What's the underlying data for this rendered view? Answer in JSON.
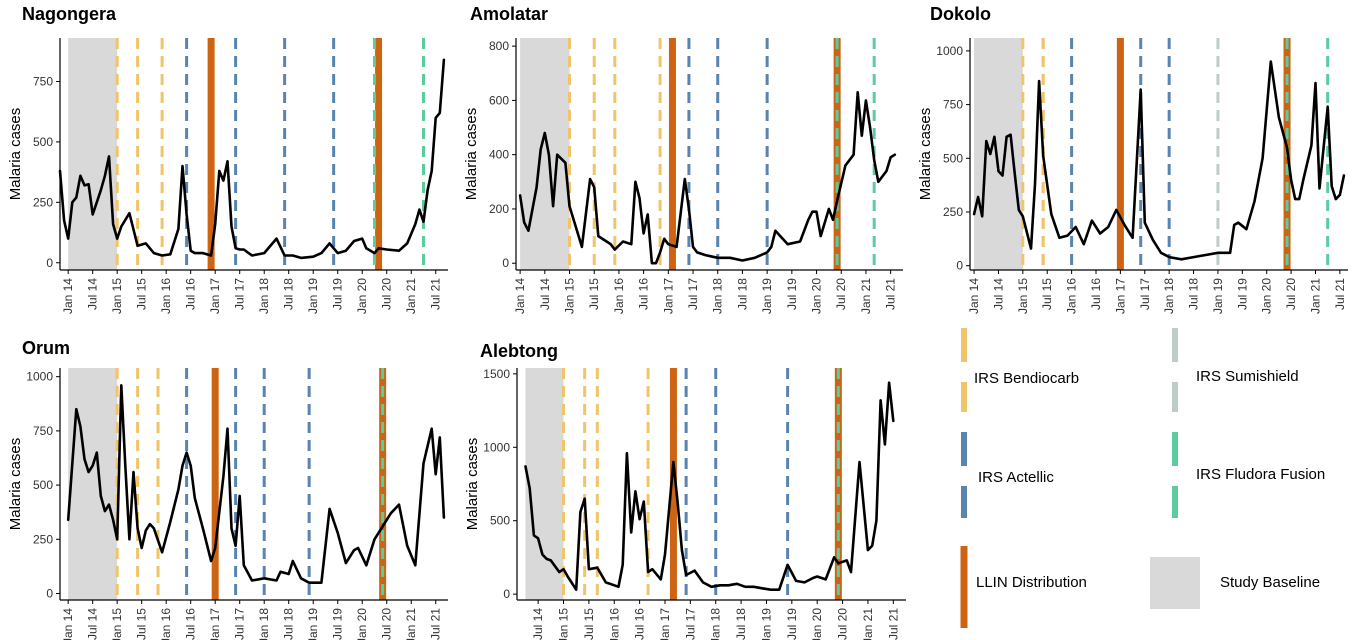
{
  "colors": {
    "baseline": "#d9d9d9",
    "irs_bendiocarb": "#f0c46a",
    "irs_actellic": "#5a84b0",
    "irs_sumishield": "#bfcdc8",
    "irs_fludora_fusion": "#5ccc9e",
    "llin_distribution": "#cc6414",
    "cases_line": "#000000"
  },
  "legend": {
    "irs_bendiocarb": "IRS Bendiocarb",
    "irs_sumishield": "IRS Sumishield",
    "irs_actellic": "IRS Actellic",
    "irs_fludora_fusion": "IRS Fludora Fusion",
    "llin_distribution": "LLIN Distribution",
    "study_baseline": "Study Baseline"
  },
  "chart_data": [
    {
      "type": "line",
      "title": "Nagongera",
      "ylabel": "Malaria cases",
      "xlabel": "",
      "ylim": [
        -30,
        930
      ],
      "yticks": [
        0,
        250,
        500,
        750
      ],
      "xticks": [
        "Jan 14",
        "Jul 14",
        "Jan 15",
        "Jul 15",
        "Jan 16",
        "Jul 16",
        "Jan 17",
        "Jul 17",
        "Jan 18",
        "Jul 18",
        "Jan 19",
        "Jul 19",
        "Jan 20",
        "Jul 20",
        "Jan 21",
        "Jul 21"
      ],
      "baseline": [
        "Jan 14",
        "Jan 15"
      ],
      "interventions": {
        "irs_bendiocarb": [
          "Jan 15",
          "Jun 15",
          "Dec 15"
        ],
        "irs_actellic": [
          "Jun 16",
          "Jun 17",
          "Jun 18",
          "Jun 19"
        ],
        "irs_fludora_fusion": [
          "Apr 20",
          "Apr 21"
        ],
        "llin_distribution": [
          "Dec 16",
          "May 20"
        ]
      },
      "series": [
        {
          "x": [
            "Nov 13",
            "Dec 13",
            "Jan 14",
            "Feb 14",
            "Mar 14",
            "Apr 14",
            "May 14",
            "Jun 14",
            "Jul 14",
            "Aug 14",
            "Sep 14",
            "Oct 14",
            "Nov 14",
            "Dec 14",
            "Jan 15",
            "Feb 15",
            "Apr 15",
            "Jun 15",
            "Aug 15",
            "Oct 15",
            "Dec 15",
            "Feb 16",
            "Apr 16",
            "May 16",
            "Jun 16",
            "Jul 16",
            "Aug 16",
            "Oct 16",
            "Dec 16",
            "Jan 17",
            "Feb 17",
            "Mar 17",
            "Apr 17",
            "May 17",
            "Jun 17",
            "Jul 17",
            "Aug 17",
            "Oct 17",
            "Jan 18",
            "Apr 18",
            "Jun 18",
            "Aug 18",
            "Oct 18",
            "Jan 19",
            "Mar 19",
            "May 19",
            "Jul 19",
            "Sep 19",
            "Nov 19",
            "Jan 20",
            "Feb 20",
            "Apr 20",
            "May 20",
            "Jul 20",
            "Oct 20",
            "Dec 20",
            "Feb 21",
            "Mar 21",
            "Apr 21",
            "May 21",
            "Jun 21",
            "Jul 21",
            "Aug 21",
            "Sep 21"
          ],
          "values": [
            380,
            175,
            100,
            250,
            270,
            360,
            320,
            325,
            200,
            250,
            300,
            360,
            440,
            160,
            100,
            150,
            205,
            70,
            80,
            40,
            30,
            35,
            140,
            400,
            200,
            50,
            40,
            40,
            30,
            160,
            380,
            340,
            420,
            150,
            60,
            55,
            55,
            30,
            40,
            100,
            30,
            30,
            20,
            25,
            40,
            80,
            40,
            50,
            90,
            100,
            60,
            40,
            60,
            55,
            50,
            80,
            160,
            220,
            170,
            300,
            380,
            600,
            620,
            840
          ]
        }
      ]
    },
    {
      "type": "line",
      "title": "Amolatar",
      "ylabel": "Malaria cases",
      "xlabel": "",
      "ylim": [
        -25,
        830
      ],
      "yticks": [
        0,
        200,
        400,
        600,
        800
      ],
      "xticks": [
        "Jan 14",
        "Jul 14",
        "Jan 15",
        "Jul 15",
        "Jan 16",
        "Jul 16",
        "Jan 17",
        "Jul 17",
        "Jan 18",
        "Jul 18",
        "Jan 19",
        "Jul 19",
        "Jan 20",
        "Jul 20",
        "Jan 21",
        "Jul 21"
      ],
      "baseline": [
        "Jan 14",
        "Jan 15"
      ],
      "interventions": {
        "irs_bendiocarb": [
          "Jan 15",
          "Jul 15",
          "Dec 15",
          "Nov 16"
        ],
        "irs_actellic": [
          "Jun 17",
          "Jan 18",
          "Jan 19"
        ],
        "irs_fludora_fusion": [
          "Jun 20",
          "Mar 21"
        ],
        "llin_distribution": [
          "Feb 17",
          "Jun 20"
        ]
      },
      "series": [
        {
          "x": [
            "Jan 14",
            "Feb 14",
            "Mar 14",
            "May 14",
            "Jun 14",
            "Jul 14",
            "Aug 14",
            "Sep 14",
            "Oct 14",
            "Dec 14",
            "Jan 15",
            "Mar 15",
            "Apr 15",
            "Jun 15",
            "Jul 15",
            "Aug 15",
            "Oct 15",
            "Nov 15",
            "Dec 15",
            "Feb 16",
            "Apr 16",
            "May 16",
            "Jun 16",
            "Jul 16",
            "Aug 16",
            "Sep 16",
            "Oct 16",
            "Nov 16",
            "Dec 16",
            "Jan 17",
            "Mar 17",
            "May 17",
            "Jun 17",
            "Jul 17",
            "Aug 17",
            "Oct 17",
            "Jan 18",
            "Apr 18",
            "Jul 18",
            "Oct 18",
            "Jan 19",
            "Feb 19",
            "Mar 19",
            "Jun 19",
            "Sep 19",
            "Nov 19",
            "Dec 19",
            "Jan 20",
            "Feb 20",
            "Apr 20",
            "May 20",
            "Jun 20",
            "Aug 20",
            "Oct 20",
            "Nov 20",
            "Dec 20",
            "Jan 21",
            "Feb 21",
            "Mar 21",
            "Apr 21",
            "Jun 21",
            "Jul 21",
            "Aug 21"
          ],
          "values": [
            250,
            150,
            120,
            280,
            420,
            480,
            400,
            210,
            400,
            370,
            210,
            110,
            60,
            310,
            280,
            100,
            80,
            70,
            50,
            80,
            70,
            300,
            240,
            110,
            180,
            0,
            0,
            40,
            90,
            70,
            60,
            310,
            200,
            60,
            40,
            30,
            20,
            20,
            10,
            20,
            40,
            60,
            120,
            70,
            80,
            160,
            190,
            190,
            100,
            200,
            160,
            230,
            360,
            400,
            630,
            470,
            600,
            500,
            380,
            300,
            340,
            390,
            400
          ]
        }
      ]
    },
    {
      "type": "line",
      "title": "Dokolo",
      "ylabel": "Malaria cases",
      "xlabel": "",
      "ylim": [
        -20,
        1060
      ],
      "yticks": [
        0,
        250,
        500,
        750,
        1000
      ],
      "xticks": [
        "Jan 14",
        "Jul 14",
        "Jan 15",
        "Jul 15",
        "Jan 16",
        "Jul 16",
        "Jan 17",
        "Jul 17",
        "Jan 18",
        "Jul 18",
        "Jan 19",
        "Jul 19",
        "Jan 20",
        "Jul 20",
        "Jan 21",
        "Jul 21"
      ],
      "baseline": [
        "Jan 14",
        "Jan 15"
      ],
      "interventions": {
        "irs_bendiocarb": [
          "Jan 15",
          "Jun 15",
          "Jun 15"
        ],
        "irs_actellic": [
          "Jan 16",
          "Jun 17",
          "Jan 18"
        ],
        "irs_sumishield": [
          "Jan 19"
        ],
        "irs_fludora_fusion": [
          "Jun 20",
          "Apr 21"
        ],
        "llin_distribution": [
          "Jan 17",
          "Jun 20"
        ]
      },
      "series": [
        {
          "x": [
            "Jan 14",
            "Feb 14",
            "Mar 14",
            "Apr 14",
            "May 14",
            "Jun 14",
            "Jul 14",
            "Aug 14",
            "Sep 14",
            "Oct 14",
            "Nov 14",
            "Dec 14",
            "Jan 15",
            "Mar 15",
            "Apr 15",
            "May 15",
            "Jun 15",
            "Aug 15",
            "Oct 15",
            "Dec 15",
            "Feb 16",
            "Apr 16",
            "Jun 16",
            "Aug 16",
            "Oct 16",
            "Dec 16",
            "Feb 17",
            "Apr 17",
            "Jun 17",
            "Jul 17",
            "Sep 17",
            "Nov 17",
            "Jan 18",
            "Apr 18",
            "Jul 18",
            "Oct 18",
            "Jan 19",
            "Apr 19",
            "May 19",
            "Jun 19",
            "Aug 19",
            "Oct 19",
            "Dec 19",
            "Feb 20",
            "Apr 20",
            "Jun 20",
            "Jul 20",
            "Aug 20",
            "Sep 20",
            "Oct 20",
            "Dec 20",
            "Jan 21",
            "Feb 21",
            "Apr 21",
            "May 21",
            "Jun 21",
            "Jul 21",
            "Aug 21"
          ],
          "values": [
            240,
            320,
            230,
            580,
            520,
            600,
            440,
            420,
            600,
            610,
            430,
            260,
            230,
            80,
            380,
            860,
            510,
            240,
            130,
            140,
            180,
            100,
            210,
            150,
            180,
            260,
            190,
            130,
            820,
            200,
            120,
            60,
            40,
            30,
            40,
            50,
            60,
            60,
            190,
            200,
            170,
            300,
            500,
            950,
            690,
            550,
            400,
            310,
            310,
            400,
            560,
            850,
            360,
            740,
            370,
            310,
            330,
            420
          ]
        }
      ]
    },
    {
      "type": "line",
      "title": "Orum",
      "ylabel": "Malaria cases",
      "xlabel": "",
      "ylim": [
        -30,
        1040
      ],
      "yticks": [
        0,
        250,
        500,
        750,
        1000
      ],
      "xticks": [
        "Jan 14",
        "Jul 14",
        "Jan 15",
        "Jul 15",
        "Jan 16",
        "Jul 16",
        "Jan 17",
        "Jul 17",
        "Jan 18",
        "Jul 18",
        "Jan 19",
        "Jul 19",
        "Jan 20",
        "Jul 20",
        "Jan 21",
        "Jul 21"
      ],
      "baseline": [
        "Jan 14",
        "Jan 15"
      ],
      "interventions": {
        "irs_bendiocarb": [
          "Jan 15",
          "Jun 15",
          "Nov 15"
        ],
        "irs_actellic": [
          "Jun 16",
          "Jun 17",
          "Jan 18",
          "Dec 18"
        ],
        "irs_fludora_fusion": [
          "Jun 20"
        ],
        "llin_distribution": [
          "Jan 17",
          "Jun 20"
        ]
      },
      "series": [
        {
          "x": [
            "Jan 14",
            "Mar 14",
            "Apr 14",
            "May 14",
            "Jun 14",
            "Jul 14",
            "Aug 14",
            "Sep 14",
            "Oct 14",
            "Nov 14",
            "Dec 14",
            "Jan 15",
            "Feb 15",
            "Mar 15",
            "Apr 15",
            "May 15",
            "Jun 15",
            "Jul 15",
            "Aug 15",
            "Sep 15",
            "Oct 15",
            "Dec 15",
            "Feb 16",
            "Apr 16",
            "May 16",
            "Jun 16",
            "Jul 16",
            "Aug 16",
            "Oct 16",
            "Dec 16",
            "Jan 17",
            "Mar 17",
            "Apr 17",
            "May 17",
            "Jun 17",
            "Jul 17",
            "Aug 17",
            "Oct 17",
            "Jan 18",
            "Apr 18",
            "May 18",
            "Jul 18",
            "Aug 18",
            "Oct 18",
            "Dec 18",
            "Feb 19",
            "Mar 19",
            "May 19",
            "Jul 19",
            "Sep 19",
            "Nov 19",
            "Dec 19",
            "Feb 20",
            "Apr 20",
            "Jun 20",
            "Aug 20",
            "Oct 20",
            "Dec 20",
            "Feb 21",
            "Apr 21",
            "Jun 21",
            "Jul 21",
            "Aug 21",
            "Sep 21"
          ],
          "values": [
            340,
            850,
            770,
            620,
            560,
            590,
            650,
            450,
            380,
            410,
            340,
            250,
            960,
            590,
            250,
            560,
            300,
            210,
            290,
            320,
            300,
            190,
            330,
            480,
            590,
            650,
            590,
            440,
            300,
            150,
            210,
            540,
            760,
            300,
            220,
            450,
            130,
            60,
            70,
            60,
            100,
            90,
            150,
            70,
            50,
            50,
            50,
            390,
            280,
            140,
            200,
            210,
            130,
            250,
            310,
            370,
            410,
            220,
            130,
            600,
            760,
            550,
            720,
            350
          ]
        }
      ]
    },
    {
      "type": "line",
      "title": "Alebtong",
      "ylabel": "Malaria cases",
      "xlabel": "",
      "ylim": [
        -40,
        1540
      ],
      "yticks": [
        0,
        500,
        1000,
        1500
      ],
      "xticks": [
        "Jul 14",
        "Jan 15",
        "Jul 15",
        "Jan 16",
        "Jul 16",
        "Jan 17",
        "Jul 17",
        "Jan 18",
        "Jul 18",
        "Jan 19",
        "Jul 19",
        "Jan 20",
        "Jul 20",
        "Jan 21",
        "Jul 21"
      ],
      "baseline": [
        "Apr 14",
        "Jan 15"
      ],
      "interventions": {
        "irs_bendiocarb": [
          "Jan 15",
          "Jun 15",
          "Sep 15",
          "Sep 16"
        ],
        "irs_actellic": [
          "Jun 17",
          "Jan 18",
          "Jun 19"
        ],
        "irs_fludora_fusion": [
          "Jun 20"
        ],
        "llin_distribution": [
          "Mar 17",
          "Jun 20"
        ]
      },
      "series": [
        {
          "x": [
            "Apr 14",
            "May 14",
            "Jun 14",
            "Jul 14",
            "Aug 14",
            "Sep 14",
            "Oct 14",
            "Dec 14",
            "Jan 15",
            "Feb 15",
            "Apr 15",
            "May 15",
            "Jun 15",
            "Jul 15",
            "Sep 15",
            "Nov 15",
            "Jan 16",
            "Feb 16",
            "Mar 16",
            "Apr 16",
            "May 16",
            "Jun 16",
            "Jul 16",
            "Aug 16",
            "Sep 16",
            "Oct 16",
            "Dec 16",
            "Jan 17",
            "Mar 17",
            "Apr 17",
            "May 17",
            "Jun 17",
            "Aug 17",
            "Oct 17",
            "Dec 17",
            "Feb 18",
            "Apr 18",
            "Jun 18",
            "Aug 18",
            "Oct 18",
            "Dec 18",
            "Feb 19",
            "Apr 19",
            "Jun 19",
            "Aug 19",
            "Oct 19",
            "Dec 19",
            "Jan 20",
            "Mar 20",
            "May 20",
            "Jun 20",
            "Aug 20",
            "Sep 20",
            "Nov 20",
            "Jan 21",
            "Feb 21",
            "Mar 21",
            "Apr 21",
            "May 21",
            "Jun 21",
            "Jul 21"
          ],
          "values": [
            870,
            720,
            400,
            380,
            270,
            240,
            230,
            150,
            170,
            120,
            30,
            560,
            650,
            170,
            180,
            80,
            60,
            50,
            200,
            960,
            420,
            700,
            510,
            630,
            150,
            170,
            100,
            270,
            900,
            620,
            300,
            130,
            160,
            80,
            50,
            60,
            60,
            70,
            50,
            50,
            40,
            30,
            30,
            200,
            90,
            80,
            110,
            120,
            100,
            250,
            210,
            230,
            150,
            900,
            300,
            330,
            500,
            1320,
            1020,
            1440,
            1180
          ]
        }
      ]
    }
  ]
}
